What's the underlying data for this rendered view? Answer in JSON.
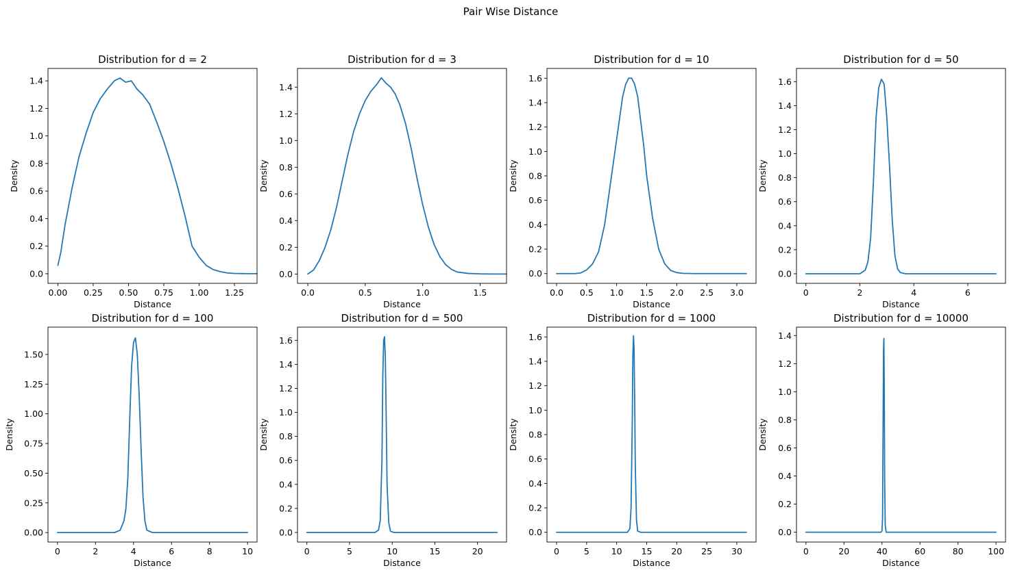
{
  "figure_title": "Pair Wise Distance",
  "chart_data": [
    {
      "type": "line",
      "title": "Distribution for d = 2",
      "xlabel": "Distance",
      "ylabel": "Density",
      "xlim": [
        -0.07,
        1.41
      ],
      "ylim": [
        -0.07,
        1.49
      ],
      "xticks": [
        0,
        0.25,
        0.5,
        0.75,
        1.0,
        1.25
      ],
      "xtick_labels": [
        "0.00",
        "0.25",
        "0.50",
        "0.75",
        "1.00",
        "1.25"
      ],
      "yticks": [
        0,
        0.2,
        0.4,
        0.6,
        0.8,
        1.0,
        1.2,
        1.4
      ],
      "ytick_labels": [
        "0.0",
        "0.2",
        "0.4",
        "0.6",
        "0.8",
        "1.0",
        "1.2",
        "1.4"
      ],
      "series": [
        {
          "color": "#1f77b4",
          "x": [
            0.0,
            0.02,
            0.05,
            0.1,
            0.15,
            0.2,
            0.25,
            0.3,
            0.35,
            0.4,
            0.44,
            0.48,
            0.52,
            0.56,
            0.6,
            0.65,
            0.7,
            0.75,
            0.8,
            0.85,
            0.9,
            0.95,
            1.0,
            1.05,
            1.1,
            1.15,
            1.2,
            1.25,
            1.3,
            1.35,
            1.41
          ],
          "y": [
            0.06,
            0.15,
            0.35,
            0.62,
            0.85,
            1.02,
            1.17,
            1.27,
            1.34,
            1.4,
            1.42,
            1.39,
            1.4,
            1.34,
            1.3,
            1.23,
            1.1,
            0.96,
            0.8,
            0.62,
            0.42,
            0.2,
            0.12,
            0.06,
            0.03,
            0.015,
            0.005,
            0.002,
            0.001,
            0.0,
            0.0
          ]
        }
      ]
    },
    {
      "type": "line",
      "title": "Distribution for d = 3",
      "xlabel": "Distance",
      "ylabel": "Density",
      "xlim": [
        -0.09,
        1.73
      ],
      "ylim": [
        -0.07,
        1.54
      ],
      "xticks": [
        0,
        0.5,
        1.0,
        1.5
      ],
      "xtick_labels": [
        "0.0",
        "0.5",
        "1.0",
        "1.5"
      ],
      "yticks": [
        0,
        0.2,
        0.4,
        0.6,
        0.8,
        1.0,
        1.2,
        1.4
      ],
      "ytick_labels": [
        "0.0",
        "0.2",
        "0.4",
        "0.6",
        "0.8",
        "1.0",
        "1.2",
        "1.4"
      ],
      "series": [
        {
          "color": "#1f77b4",
          "x": [
            0.0,
            0.05,
            0.1,
            0.15,
            0.2,
            0.25,
            0.3,
            0.35,
            0.4,
            0.45,
            0.5,
            0.55,
            0.6,
            0.64,
            0.68,
            0.72,
            0.76,
            0.8,
            0.85,
            0.9,
            0.95,
            1.0,
            1.05,
            1.1,
            1.15,
            1.2,
            1.25,
            1.3,
            1.4,
            1.5,
            1.6,
            1.73
          ],
          "y": [
            0.0,
            0.03,
            0.1,
            0.2,
            0.33,
            0.5,
            0.7,
            0.9,
            1.07,
            1.2,
            1.3,
            1.37,
            1.42,
            1.47,
            1.43,
            1.4,
            1.35,
            1.27,
            1.13,
            0.94,
            0.72,
            0.52,
            0.35,
            0.22,
            0.13,
            0.07,
            0.035,
            0.015,
            0.004,
            0.001,
            0.0,
            0.0
          ]
        }
      ]
    },
    {
      "type": "line",
      "title": "Distribution for d = 10",
      "xlabel": "Distance",
      "ylabel": "Density",
      "xlim": [
        -0.16,
        3.32
      ],
      "ylim": [
        -0.08,
        1.68
      ],
      "xticks": [
        0,
        0.5,
        1.0,
        1.5,
        2.0,
        2.5,
        3.0
      ],
      "xtick_labels": [
        "0.0",
        "0.5",
        "1.0",
        "1.5",
        "2.0",
        "2.5",
        "3.0"
      ],
      "yticks": [
        0,
        0.2,
        0.4,
        0.6,
        0.8,
        1.0,
        1.2,
        1.4,
        1.6
      ],
      "ytick_labels": [
        "0.0",
        "0.2",
        "0.4",
        "0.6",
        "0.8",
        "1.0",
        "1.2",
        "1.4",
        "1.6"
      ],
      "series": [
        {
          "color": "#1f77b4",
          "x": [
            0.0,
            0.3,
            0.4,
            0.5,
            0.6,
            0.7,
            0.8,
            0.9,
            1.0,
            1.1,
            1.15,
            1.2,
            1.25,
            1.3,
            1.35,
            1.4,
            1.45,
            1.5,
            1.6,
            1.7,
            1.8,
            1.9,
            2.0,
            2.1,
            2.3,
            3.16
          ],
          "y": [
            0.0,
            0.0,
            0.005,
            0.03,
            0.08,
            0.18,
            0.4,
            0.75,
            1.1,
            1.45,
            1.55,
            1.6,
            1.6,
            1.55,
            1.45,
            1.25,
            1.05,
            0.8,
            0.45,
            0.2,
            0.08,
            0.025,
            0.008,
            0.002,
            0.0,
            0.0
          ]
        }
      ]
    },
    {
      "type": "line",
      "title": "Distribution for d = 50",
      "xlabel": "Distance",
      "ylabel": "Density",
      "xlim": [
        -0.35,
        7.4
      ],
      "ylim": [
        -0.08,
        1.71
      ],
      "xticks": [
        0,
        2,
        4,
        6
      ],
      "xtick_labels": [
        "0",
        "2",
        "4",
        "6"
      ],
      "yticks": [
        0,
        0.2,
        0.4,
        0.6,
        0.8,
        1.0,
        1.2,
        1.4,
        1.6
      ],
      "ytick_labels": [
        "0.0",
        "0.2",
        "0.4",
        "0.6",
        "0.8",
        "1.0",
        "1.2",
        "1.4",
        "1.6"
      ],
      "series": [
        {
          "color": "#1f77b4",
          "x": [
            0.0,
            2.0,
            2.2,
            2.3,
            2.4,
            2.5,
            2.6,
            2.7,
            2.8,
            2.9,
            3.0,
            3.1,
            3.2,
            3.3,
            3.4,
            3.5,
            3.7,
            4.0,
            7.05
          ],
          "y": [
            0.0,
            0.0,
            0.03,
            0.1,
            0.3,
            0.75,
            1.3,
            1.55,
            1.62,
            1.58,
            1.3,
            0.9,
            0.45,
            0.15,
            0.04,
            0.01,
            0.0,
            0.0,
            0.0
          ]
        }
      ]
    },
    {
      "type": "line",
      "title": "Distribution for d = 100",
      "xlabel": "Distance",
      "ylabel": "Density",
      "xlim": [
        -0.5,
        10.5
      ],
      "ylim": [
        -0.08,
        1.73
      ],
      "xticks": [
        0,
        2,
        4,
        6,
        8,
        10
      ],
      "xtick_labels": [
        "0",
        "2",
        "4",
        "6",
        "8",
        "10"
      ],
      "yticks": [
        0,
        0.25,
        0.5,
        0.75,
        1.0,
        1.25,
        1.5
      ],
      "ytick_labels": [
        "0.00",
        "0.25",
        "0.50",
        "0.75",
        "1.00",
        "1.25",
        "1.50"
      ],
      "series": [
        {
          "color": "#1f77b4",
          "x": [
            0.0,
            3.0,
            3.3,
            3.5,
            3.6,
            3.7,
            3.8,
            3.9,
            4.0,
            4.1,
            4.2,
            4.3,
            4.4,
            4.5,
            4.6,
            4.7,
            5.0,
            10.0
          ],
          "y": [
            0.0,
            0.0,
            0.02,
            0.1,
            0.2,
            0.45,
            0.95,
            1.4,
            1.6,
            1.64,
            1.5,
            1.15,
            0.7,
            0.3,
            0.1,
            0.02,
            0.0,
            0.0
          ]
        }
      ]
    },
    {
      "type": "line",
      "title": "Distribution for d = 500",
      "xlabel": "Distance",
      "ylabel": "Density",
      "xlim": [
        -1.1,
        23.4
      ],
      "ylim": [
        -0.08,
        1.71
      ],
      "xticks": [
        0,
        5,
        10,
        15,
        20
      ],
      "xtick_labels": [
        "0",
        "5",
        "10",
        "15",
        "20"
      ],
      "yticks": [
        0,
        0.2,
        0.4,
        0.6,
        0.8,
        1.0,
        1.2,
        1.4,
        1.6
      ],
      "ytick_labels": [
        "0.0",
        "0.2",
        "0.4",
        "0.6",
        "0.8",
        "1.0",
        "1.2",
        "1.4",
        "1.6"
      ],
      "series": [
        {
          "color": "#1f77b4",
          "x": [
            0.0,
            8.0,
            8.4,
            8.6,
            8.8,
            8.9,
            9.0,
            9.1,
            9.2,
            9.3,
            9.4,
            9.6,
            9.8,
            10.2,
            22.3
          ],
          "y": [
            0.0,
            0.0,
            0.02,
            0.1,
            0.6,
            1.3,
            1.6,
            1.63,
            1.45,
            0.95,
            0.4,
            0.08,
            0.01,
            0.0,
            0.0
          ]
        }
      ]
    },
    {
      "type": "line",
      "title": "Distribution for d = 1000",
      "xlabel": "Distance",
      "ylabel": "Density",
      "xlim": [
        -1.6,
        33.2
      ],
      "ylim": [
        -0.08,
        1.68
      ],
      "xticks": [
        0,
        5,
        10,
        15,
        20,
        25,
        30
      ],
      "xtick_labels": [
        "0",
        "5",
        "10",
        "15",
        "20",
        "25",
        "30"
      ],
      "yticks": [
        0,
        0.2,
        0.4,
        0.6,
        0.8,
        1.0,
        1.2,
        1.4,
        1.6
      ],
      "ytick_labels": [
        "0.0",
        "0.2",
        "0.4",
        "0.6",
        "0.8",
        "1.0",
        "1.2",
        "1.4",
        "1.6"
      ],
      "series": [
        {
          "color": "#1f77b4",
          "x": [
            0.0,
            11.8,
            12.2,
            12.4,
            12.6,
            12.7,
            12.8,
            12.9,
            13.0,
            13.1,
            13.3,
            13.5,
            14.0,
            31.6
          ],
          "y": [
            0.0,
            0.0,
            0.03,
            0.2,
            0.9,
            1.45,
            1.61,
            1.5,
            1.1,
            0.55,
            0.1,
            0.01,
            0.0,
            0.0
          ]
        }
      ]
    },
    {
      "type": "line",
      "title": "Distribution for d = 10000",
      "xlabel": "Distance",
      "ylabel": "Density",
      "xlim": [
        -5,
        105
      ],
      "ylim": [
        -0.07,
        1.46
      ],
      "xticks": [
        0,
        20,
        40,
        60,
        80,
        100
      ],
      "xtick_labels": [
        "0",
        "20",
        "40",
        "60",
        "80",
        "100"
      ],
      "yticks": [
        0,
        0.2,
        0.4,
        0.6,
        0.8,
        1.0,
        1.2,
        1.4
      ],
      "ytick_labels": [
        "0.0",
        "0.2",
        "0.4",
        "0.6",
        "0.8",
        "1.0",
        "1.2",
        "1.4"
      ],
      "series": [
        {
          "color": "#1f77b4",
          "x": [
            0.0,
            39.5,
            40.0,
            40.3,
            40.6,
            40.8,
            41.0,
            41.2,
            41.4,
            41.7,
            42.2,
            100.0
          ],
          "y": [
            0.0,
            0.0,
            0.01,
            0.1,
            0.8,
            1.3,
            1.38,
            1.0,
            0.4,
            0.05,
            0.0,
            0.0
          ]
        }
      ]
    }
  ]
}
